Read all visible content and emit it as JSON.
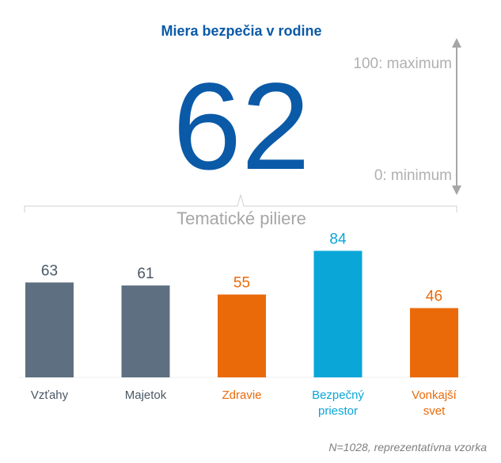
{
  "header": {
    "title": "Miera bezpečia v rodine",
    "score": "62"
  },
  "scale": {
    "max_label": "100: maximum",
    "min_label": "0: minimum"
  },
  "pillars_title": "Tematické piliere",
  "footnote": "N=1028, reprezentatívna vzorka",
  "colors": {
    "primary_blue": "#0a5aa8",
    "gray_bar": "#5f6f82",
    "orange_bar": "#ea6a0a",
    "cyan_bar": "#0aa6d8"
  },
  "chart_data": {
    "type": "bar",
    "categories": [
      "Vzťahy",
      "Majetok",
      "Zdravie",
      "Bezpečný priestor",
      "Vonkajší svet"
    ],
    "category_lines": [
      [
        "Vzťahy"
      ],
      [
        "Majetok"
      ],
      [
        "Zdravie"
      ],
      [
        "Bezpečný",
        "priestor"
      ],
      [
        "Vonkajší",
        "svet"
      ]
    ],
    "values": [
      63,
      61,
      55,
      84,
      46
    ],
    "data_labels": [
      "63",
      "61",
      "55",
      "84",
      "46"
    ],
    "bar_colors": [
      "#5f6f82",
      "#5f6f82",
      "#ea6a0a",
      "#0aa6d8",
      "#ea6a0a"
    ],
    "label_colors": [
      "#4a5866",
      "#4a5866",
      "#ea6a0a",
      "#0aa6d8",
      "#ea6a0a"
    ],
    "ylim": [
      0,
      100
    ],
    "title": "Tematické piliere",
    "xlabel": "",
    "ylabel": "",
    "grid": false,
    "legend": "none"
  }
}
